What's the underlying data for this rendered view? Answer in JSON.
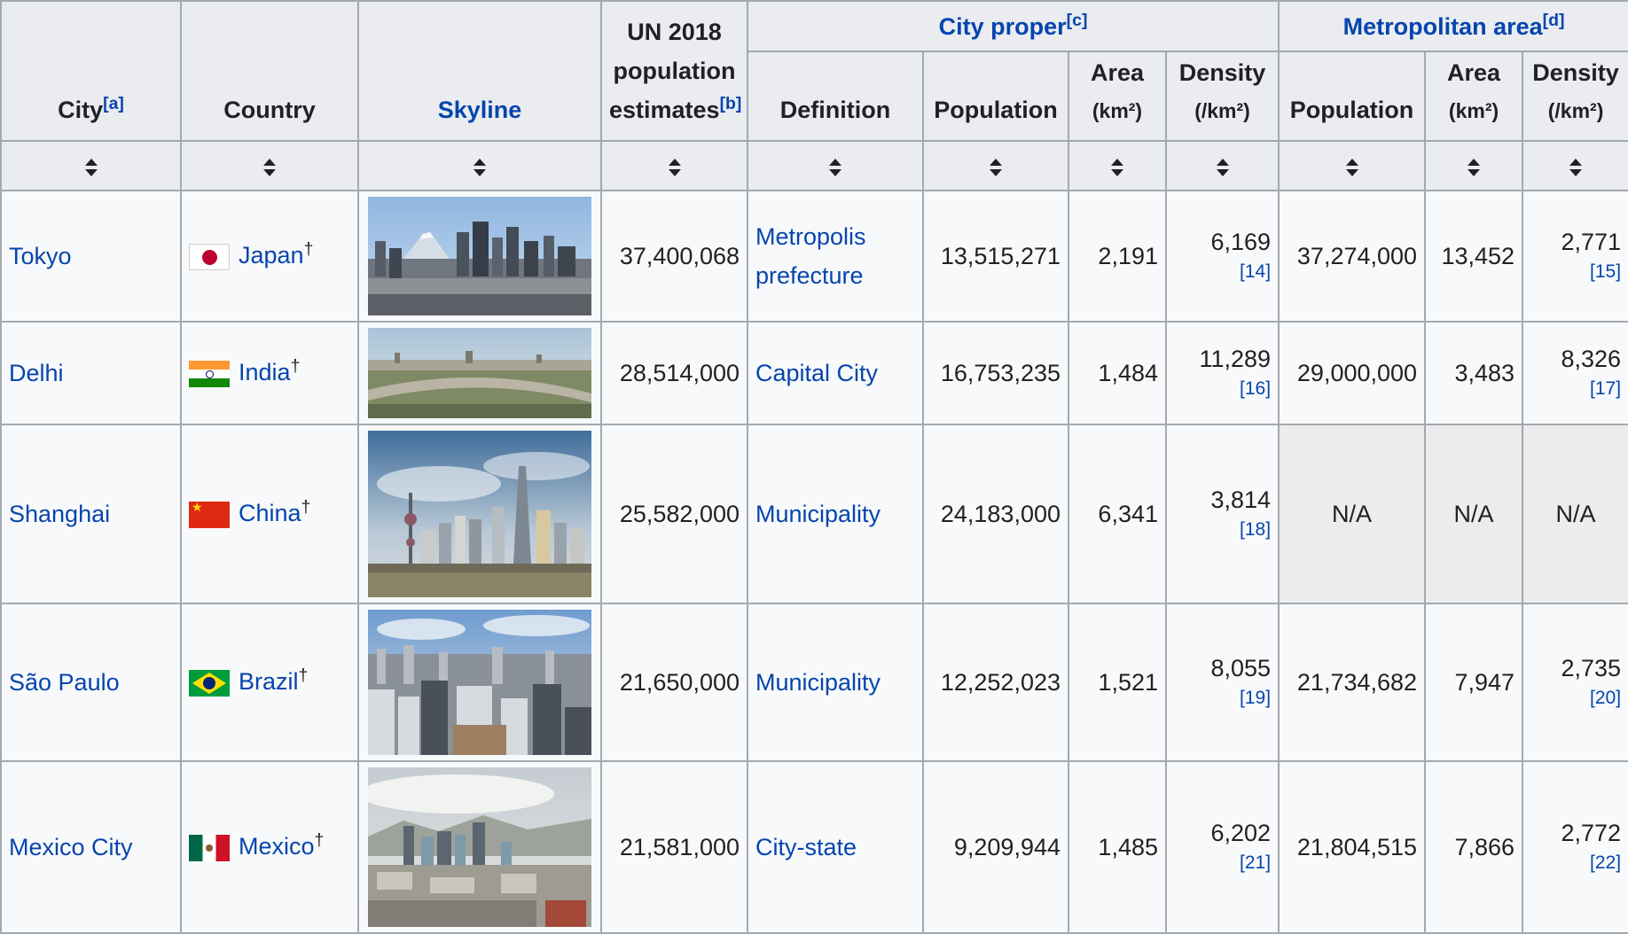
{
  "headers": {
    "city": "City",
    "city_note": "[a]",
    "country": "Country",
    "skyline": "Skyline",
    "un": "UN 2018 population estimates",
    "un_note": "[b]",
    "city_proper": "City proper",
    "city_proper_note": "[c]",
    "metro": "Metropolitan area",
    "metro_note": "[d]",
    "definition": "Definition",
    "population": "Population",
    "area": "Area",
    "area_unit": "(km²)",
    "density": "Density",
    "density_unit": "(/km²)"
  },
  "dagger": "†",
  "rows": [
    {
      "city": "Tokyo",
      "country": "Japan",
      "flag": "japan-flag-icon",
      "skyline": "tokyo-skyline-image",
      "un": "37,400,068",
      "definition": "Metropolis prefecture",
      "cp_pop": "13,515,271",
      "cp_area": "2,191",
      "cp_density": "6,169",
      "cp_ref": "[14]",
      "m_pop": "37,274,000",
      "m_area": "13,452",
      "m_density": "2,771",
      "m_ref": "[15]"
    },
    {
      "city": "Delhi",
      "country": "India",
      "flag": "india-flag-icon",
      "skyline": "delhi-skyline-image",
      "un": "28,514,000",
      "definition": "Capital City",
      "cp_pop": "16,753,235",
      "cp_area": "1,484",
      "cp_density": "11,289",
      "cp_ref": "[16]",
      "m_pop": "29,000,000",
      "m_area": "3,483",
      "m_density": "8,326",
      "m_ref": "[17]"
    },
    {
      "city": "Shanghai",
      "country": "China",
      "flag": "china-flag-icon",
      "skyline": "shanghai-skyline-image",
      "un": "25,582,000",
      "definition": "Municipality",
      "cp_pop": "24,183,000",
      "cp_area": "6,341",
      "cp_density": "3,814",
      "cp_ref": "[18]",
      "m_pop": "N/A",
      "m_area": "N/A",
      "m_density": "N/A",
      "m_ref": ""
    },
    {
      "city": "São Paulo",
      "country": "Brazil",
      "flag": "brazil-flag-icon",
      "skyline": "sao-paulo-skyline-image",
      "un": "21,650,000",
      "definition": "Municipality",
      "cp_pop": "12,252,023",
      "cp_area": "1,521",
      "cp_density": "8,055",
      "cp_ref": "[19]",
      "m_pop": "21,734,682",
      "m_area": "7,947",
      "m_density": "2,735",
      "m_ref": "[20]"
    },
    {
      "city": "Mexico City",
      "country": "Mexico",
      "flag": "mexico-flag-icon",
      "skyline": "mexico-city-skyline-image",
      "un": "21,581,000",
      "definition": "City-state",
      "cp_pop": "9,209,944",
      "cp_area": "1,485",
      "cp_density": "6,202",
      "cp_ref": "[21]",
      "m_pop": "21,804,515",
      "m_area": "7,866",
      "m_density": "2,772",
      "m_ref": "[22]"
    }
  ],
  "colors": {
    "link": "#0645ad",
    "header_bg": "#eaecf0",
    "cell_bg": "#f8f9fa",
    "border": "#a2a9b1",
    "na_bg": "#ececec"
  }
}
